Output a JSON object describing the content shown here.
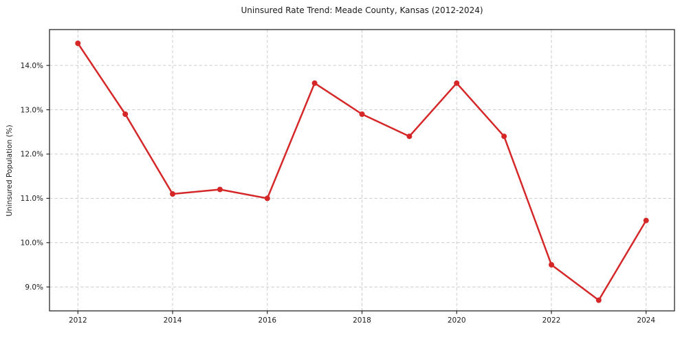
{
  "chart_data": {
    "type": "line",
    "title": "Uninsured Rate Trend: Meade County, Kansas (2012-2024)",
    "xlabel": "",
    "ylabel": "Uninsured Population (%)",
    "x": [
      2012,
      2013,
      2014,
      2015,
      2016,
      2017,
      2018,
      2019,
      2020,
      2021,
      2022,
      2023,
      2024
    ],
    "values": [
      14.5,
      12.9,
      11.1,
      11.2,
      11.0,
      13.6,
      12.9,
      12.4,
      13.6,
      12.4,
      9.5,
      8.7,
      10.5
    ],
    "xticks": {
      "values": [
        2012,
        2014,
        2016,
        2018,
        2020,
        2022,
        2024
      ],
      "labels": [
        "2012",
        "2014",
        "2016",
        "2018",
        "2020",
        "2022",
        "2024"
      ]
    },
    "yticks": {
      "values": [
        9,
        10,
        11,
        12,
        13,
        14
      ],
      "labels": [
        "9.0%",
        "10.0%",
        "11.0%",
        "12.0%",
        "13.0%",
        "14.0%"
      ]
    },
    "xlim": [
      2011.4,
      2024.6
    ],
    "ylim": [
      8.46,
      14.81
    ],
    "grid": true,
    "grid_style": "dashed",
    "legend": false,
    "marker": "circle",
    "colors": {
      "line": "#d62728",
      "marker": "#d62728",
      "grid": "#cccccc",
      "spine": "#262626",
      "tick": "#262626",
      "text": "#1a1a1a",
      "background": "#ffffff"
    }
  }
}
